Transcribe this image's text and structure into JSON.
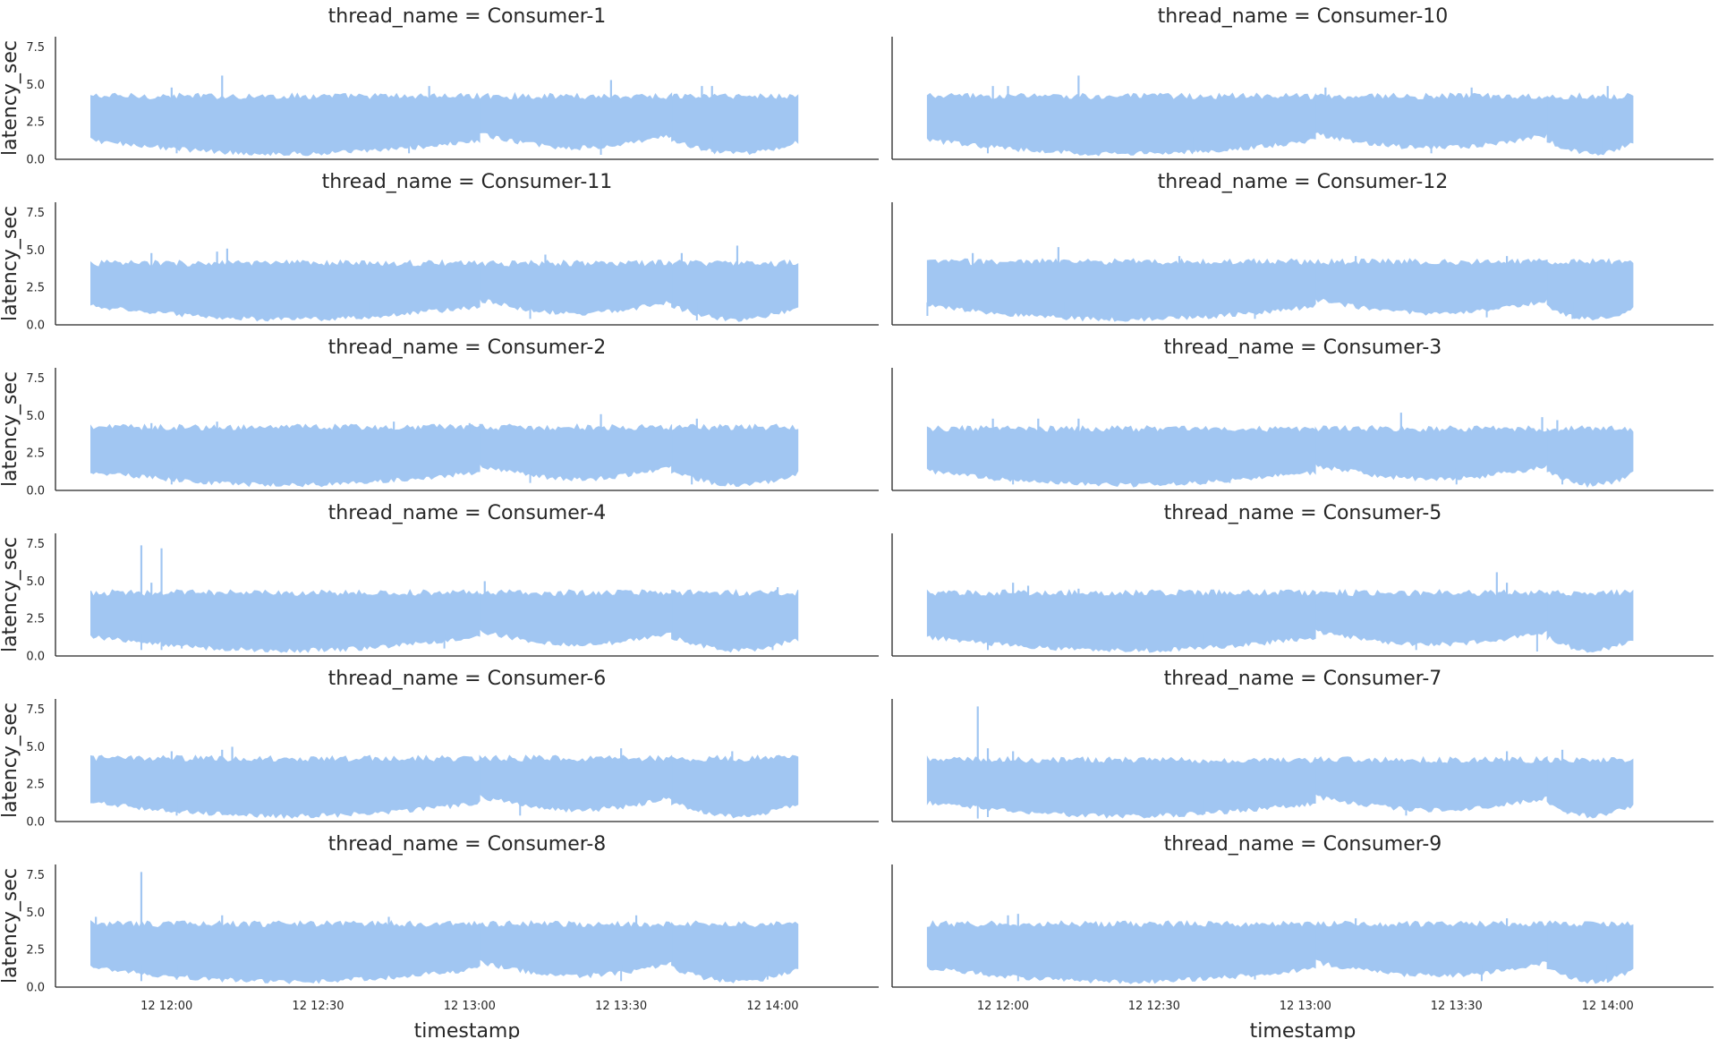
{
  "figure": {
    "series_color": "#a1c6f2",
    "axis_color": "#262626",
    "background": "#ffffff"
  },
  "chart_data": {
    "type": "line",
    "facet_by": "thread_name",
    "xlabel": "timestamp",
    "ylabel": "latency_sec",
    "x_tick_labels": [
      "12 12:00",
      "12 12:30",
      "12 13:00",
      "12 13:30",
      "12 14:00"
    ],
    "y_ticks": [
      0.0,
      2.5,
      5.0,
      7.5
    ],
    "y_tick_labels": [
      "0.0",
      "2.5",
      "5.0",
      "7.5"
    ],
    "ylim": [
      0,
      8.2
    ],
    "xlim_minutes_from_1200": [
      -22,
      141
    ],
    "data_x_range_minutes": [
      -15,
      125
    ],
    "grid": false,
    "panel_columns": 2,
    "panels": [
      {
        "title": "thread_name = Consumer-1",
        "bands": [
          {
            "x": [
              -15,
              62
            ],
            "low": 1.3,
            "high": 4.2
          },
          {
            "x": [
              62,
              100
            ],
            "low": 1.7,
            "high": 4.2
          },
          {
            "x": [
              100,
              125
            ],
            "low": 1.3,
            "high": 4.2
          }
        ],
        "dips": [
          {
            "x": 2,
            "y": 0.4
          },
          {
            "x": 23,
            "y": 0.5
          },
          {
            "x": 48,
            "y": 0.4
          },
          {
            "x": 86,
            "y": 0.3
          },
          {
            "x": 108,
            "y": 0.5
          }
        ],
        "spikes": [
          {
            "x": 1,
            "y": 4.8
          },
          {
            "x": 11,
            "y": 5.6
          },
          {
            "x": 52,
            "y": 4.9
          },
          {
            "x": 88,
            "y": 5.3
          },
          {
            "x": 106,
            "y": 4.9
          },
          {
            "x": 108,
            "y": 4.9
          }
        ]
      },
      {
        "title": "thread_name = Consumer-10",
        "bands": [
          {
            "x": [
              -15,
              62
            ],
            "low": 1.3,
            "high": 4.2
          },
          {
            "x": [
              62,
              108
            ],
            "low": 1.7,
            "high": 4.2
          },
          {
            "x": [
              108,
              125
            ],
            "low": 1.3,
            "high": 4.2
          }
        ],
        "dips": [
          {
            "x": -3,
            "y": 0.4
          },
          {
            "x": 38,
            "y": 0.5
          },
          {
            "x": 85,
            "y": 0.4
          },
          {
            "x": 119,
            "y": 0.3
          }
        ],
        "spikes": [
          {
            "x": -2,
            "y": 4.9
          },
          {
            "x": 1,
            "y": 4.9
          },
          {
            "x": 15,
            "y": 5.6
          },
          {
            "x": 64,
            "y": 4.8
          },
          {
            "x": 93,
            "y": 4.8
          },
          {
            "x": 120,
            "y": 4.9
          }
        ]
      },
      {
        "title": "thread_name = Consumer-11",
        "bands": [
          {
            "x": [
              -15,
              62
            ],
            "low": 1.3,
            "high": 4.1
          },
          {
            "x": [
              62,
              100
            ],
            "low": 1.7,
            "high": 4.1
          },
          {
            "x": [
              100,
              125
            ],
            "low": 1.3,
            "high": 4.1
          }
        ],
        "dips": [
          {
            "x": 10,
            "y": 0.4
          },
          {
            "x": 40,
            "y": 0.4
          },
          {
            "x": 72,
            "y": 0.4
          },
          {
            "x": 105,
            "y": 0.3
          }
        ],
        "spikes": [
          {
            "x": -3,
            "y": 4.8
          },
          {
            "x": 10,
            "y": 4.9
          },
          {
            "x": 12,
            "y": 5.1
          },
          {
            "x": 75,
            "y": 4.7
          },
          {
            "x": 102,
            "y": 4.8
          },
          {
            "x": 113,
            "y": 5.3
          }
        ]
      },
      {
        "title": "thread_name = Consumer-12",
        "bands": [
          {
            "x": [
              -15,
              62
            ],
            "low": 1.3,
            "high": 4.2
          },
          {
            "x": [
              62,
              108
            ],
            "low": 1.7,
            "high": 4.2
          },
          {
            "x": [
              108,
              125
            ],
            "low": 1.3,
            "high": 4.2
          }
        ],
        "dips": [
          {
            "x": -15,
            "y": 0.6
          },
          {
            "x": 12,
            "y": 0.4
          },
          {
            "x": 50,
            "y": 0.4
          },
          {
            "x": 96,
            "y": 0.5
          },
          {
            "x": 113,
            "y": 0.4
          }
        ],
        "spikes": [
          {
            "x": -6,
            "y": 4.8
          },
          {
            "x": 11,
            "y": 5.2
          },
          {
            "x": 35,
            "y": 4.6
          },
          {
            "x": 70,
            "y": 4.6
          },
          {
            "x": 100,
            "y": 4.6
          }
        ]
      },
      {
        "title": "thread_name = Consumer-2",
        "bands": [
          {
            "x": [
              -15,
              62
            ],
            "low": 1.3,
            "high": 4.2
          },
          {
            "x": [
              62,
              100
            ],
            "low": 1.7,
            "high": 4.2
          },
          {
            "x": [
              100,
              125
            ],
            "low": 1.3,
            "high": 4.2
          }
        ],
        "dips": [
          {
            "x": 1,
            "y": 0.4
          },
          {
            "x": 30,
            "y": 0.4
          },
          {
            "x": 72,
            "y": 0.5
          },
          {
            "x": 104,
            "y": 0.4
          }
        ],
        "spikes": [
          {
            "x": -3,
            "y": 4.5
          },
          {
            "x": 10,
            "y": 4.6
          },
          {
            "x": 45,
            "y": 4.6
          },
          {
            "x": 60,
            "y": 4.5
          },
          {
            "x": 86,
            "y": 5.1
          },
          {
            "x": 105,
            "y": 4.8
          }
        ]
      },
      {
        "title": "thread_name = Consumer-3",
        "bands": [
          {
            "x": [
              -15,
              62
            ],
            "low": 1.3,
            "high": 4.1
          },
          {
            "x": [
              62,
              108
            ],
            "low": 1.7,
            "high": 4.1
          },
          {
            "x": [
              108,
              125
            ],
            "low": 1.3,
            "high": 4.1
          }
        ],
        "dips": [
          {
            "x": 2,
            "y": 0.4
          },
          {
            "x": 45,
            "y": 0.5
          },
          {
            "x": 90,
            "y": 0.4
          },
          {
            "x": 111,
            "y": 0.4
          }
        ],
        "spikes": [
          {
            "x": -2,
            "y": 4.8
          },
          {
            "x": 7,
            "y": 4.8
          },
          {
            "x": 15,
            "y": 4.8
          },
          {
            "x": 79,
            "y": 5.2
          },
          {
            "x": 107,
            "y": 4.9
          },
          {
            "x": 110,
            "y": 4.7
          }
        ]
      },
      {
        "title": "thread_name = Consumer-4",
        "bands": [
          {
            "x": [
              -15,
              62
            ],
            "low": 1.3,
            "high": 4.2
          },
          {
            "x": [
              62,
              100
            ],
            "low": 1.7,
            "high": 4.2
          },
          {
            "x": [
              100,
              125
            ],
            "low": 1.3,
            "high": 4.2
          }
        ],
        "dips": [
          {
            "x": -5,
            "y": 0.4
          },
          {
            "x": -1,
            "y": 0.4
          },
          {
            "x": 3,
            "y": 0.5
          },
          {
            "x": 55,
            "y": 0.5
          },
          {
            "x": 120,
            "y": 0.4
          }
        ],
        "spikes": [
          {
            "x": -5,
            "y": 7.4
          },
          {
            "x": -1,
            "y": 7.2
          },
          {
            "x": -3,
            "y": 4.9
          },
          {
            "x": 63,
            "y": 5.0
          },
          {
            "x": 121,
            "y": 4.6
          }
        ]
      },
      {
        "title": "thread_name = Consumer-5",
        "bands": [
          {
            "x": [
              -15,
              62
            ],
            "low": 1.3,
            "high": 4.2
          },
          {
            "x": [
              62,
              108
            ],
            "low": 1.7,
            "high": 4.2
          },
          {
            "x": [
              108,
              125
            ],
            "low": 1.3,
            "high": 4.2
          }
        ],
        "dips": [
          {
            "x": -3,
            "y": 0.4
          },
          {
            "x": 40,
            "y": 0.5
          },
          {
            "x": 82,
            "y": 0.4
          },
          {
            "x": 106,
            "y": 0.3
          }
        ],
        "spikes": [
          {
            "x": 2,
            "y": 4.9
          },
          {
            "x": 5,
            "y": 4.7
          },
          {
            "x": 15,
            "y": 4.5
          },
          {
            "x": 98,
            "y": 5.6
          },
          {
            "x": 100,
            "y": 4.9
          }
        ]
      },
      {
        "title": "thread_name = Consumer-6",
        "bands": [
          {
            "x": [
              -15,
              62
            ],
            "low": 1.3,
            "high": 4.2
          },
          {
            "x": [
              62,
              100
            ],
            "low": 1.7,
            "high": 4.2
          },
          {
            "x": [
              100,
              125
            ],
            "low": 1.3,
            "high": 4.2
          }
        ],
        "dips": [
          {
            "x": 2,
            "y": 0.4
          },
          {
            "x": 30,
            "y": 0.5
          },
          {
            "x": 70,
            "y": 0.4
          },
          {
            "x": 112,
            "y": 0.5
          }
        ],
        "spikes": [
          {
            "x": 1,
            "y": 4.7
          },
          {
            "x": 11,
            "y": 4.8
          },
          {
            "x": 13,
            "y": 5.0
          },
          {
            "x": 90,
            "y": 4.9
          },
          {
            "x": 112,
            "y": 4.7
          }
        ]
      },
      {
        "title": "thread_name = Consumer-7",
        "bands": [
          {
            "x": [
              -15,
              62
            ],
            "low": 1.3,
            "high": 4.1
          },
          {
            "x": [
              62,
              108
            ],
            "low": 1.7,
            "high": 4.1
          },
          {
            "x": [
              108,
              125
            ],
            "low": 1.3,
            "high": 4.1
          }
        ],
        "dips": [
          {
            "x": -5,
            "y": 0.2
          },
          {
            "x": -3,
            "y": 0.3
          },
          {
            "x": 40,
            "y": 0.5
          },
          {
            "x": 80,
            "y": 0.4
          },
          {
            "x": 112,
            "y": 0.5
          }
        ],
        "spikes": [
          {
            "x": -5,
            "y": 7.7
          },
          {
            "x": -3,
            "y": 4.9
          },
          {
            "x": 2,
            "y": 4.7
          },
          {
            "x": 100,
            "y": 4.7
          },
          {
            "x": 111,
            "y": 4.8
          }
        ]
      },
      {
        "title": "thread_name = Consumer-8",
        "bands": [
          {
            "x": [
              -15,
              62
            ],
            "low": 1.3,
            "high": 4.2
          },
          {
            "x": [
              62,
              100
            ],
            "low": 1.7,
            "high": 4.2
          },
          {
            "x": [
              100,
              125
            ],
            "low": 1.3,
            "high": 4.2
          }
        ],
        "dips": [
          {
            "x": -5,
            "y": 0.4
          },
          {
            "x": 2,
            "y": 0.5
          },
          {
            "x": 30,
            "y": 0.4
          },
          {
            "x": 90,
            "y": 0.4
          },
          {
            "x": 119,
            "y": 0.5
          }
        ],
        "spikes": [
          {
            "x": -5,
            "y": 7.7
          },
          {
            "x": -14,
            "y": 4.7
          },
          {
            "x": 11,
            "y": 4.8
          },
          {
            "x": 44,
            "y": 4.7
          },
          {
            "x": 93,
            "y": 4.8
          }
        ]
      },
      {
        "title": "thread_name = Consumer-9",
        "bands": [
          {
            "x": [
              -15,
              62
            ],
            "low": 1.3,
            "high": 4.2
          },
          {
            "x": [
              62,
              108
            ],
            "low": 1.7,
            "high": 4.2
          },
          {
            "x": [
              108,
              125
            ],
            "low": 1.3,
            "high": 4.2
          }
        ],
        "dips": [
          {
            "x": 3,
            "y": 0.4
          },
          {
            "x": 50,
            "y": 0.5
          },
          {
            "x": 95,
            "y": 0.4
          },
          {
            "x": 120,
            "y": 0.3
          }
        ],
        "spikes": [
          {
            "x": 1,
            "y": 4.8
          },
          {
            "x": 3,
            "y": 4.9
          },
          {
            "x": 70,
            "y": 4.6
          },
          {
            "x": 100,
            "y": 4.6
          }
        ]
      }
    ]
  }
}
